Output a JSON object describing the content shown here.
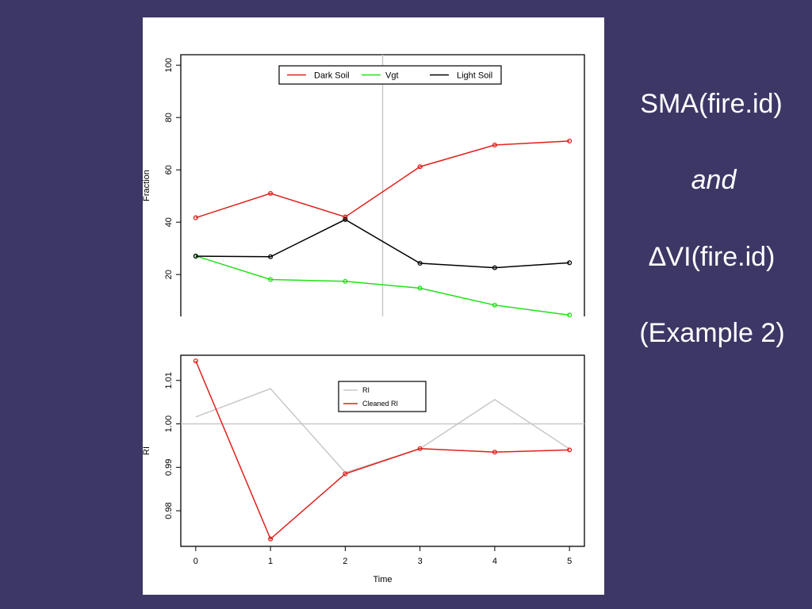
{
  "caption": {
    "line1": "SMA(fire.id)",
    "line2": "and",
    "line3": "∆VI(fire.id)",
    "line4": "(Example 2)"
  },
  "colors": {
    "background": "#3d3766",
    "dark_soil": "#e0201b",
    "vgt": "#22e01a",
    "light_soil": "#000000",
    "ri": "#c8c8c8",
    "cleaned_ri": "#e0201b",
    "reference_line": "#c8c8c8"
  },
  "chart_data": [
    {
      "type": "line",
      "xlabel": "",
      "ylabel": "Fraction",
      "x": [
        0,
        1,
        2,
        3,
        4,
        5
      ],
      "xlim": [
        -0.2,
        5.2
      ],
      "ylim": [
        4,
        104
      ],
      "yticks": [
        "20",
        "40",
        "60",
        "80",
        "100"
      ],
      "ytick_values": [
        20,
        40,
        60,
        80,
        100
      ],
      "vline_x": 2.5,
      "legend_position": "top",
      "series": [
        {
          "name": "Dark Soil",
          "color": "#e0201b",
          "values": [
            41.7,
            51.0,
            42.0,
            61.2,
            69.5,
            71.0
          ]
        },
        {
          "name": "Vgt",
          "color": "#22e01a",
          "values": [
            27.1,
            18.1,
            17.4,
            14.8,
            8.3,
            4.5
          ]
        },
        {
          "name": "Light Soil",
          "color": "#000000",
          "values": [
            27.0,
            26.8,
            41.0,
            24.3,
            22.6,
            24.5
          ]
        }
      ]
    },
    {
      "type": "line",
      "xlabel": "Time",
      "ylabel": "RI",
      "x": [
        0,
        1,
        2,
        3,
        4,
        5
      ],
      "xticks": [
        "0",
        "1",
        "2",
        "3",
        "4",
        "5"
      ],
      "xlim": [
        -0.2,
        5.2
      ],
      "ylim": [
        0.9718,
        1.0158
      ],
      "yticks": [
        "0.98",
        "0.99",
        "1.00",
        "1.01"
      ],
      "ytick_values": [
        0.98,
        0.99,
        1.0,
        1.01
      ],
      "hline_y": 1.0,
      "legend_position": "top-center",
      "series": [
        {
          "name": "RI",
          "color": "#c8c8c8",
          "values": [
            1.0016,
            1.0081,
            0.9888,
            0.9943,
            1.0056,
            0.9942
          ],
          "markers": false
        },
        {
          "name": "Cleaned RI",
          "color": "#e0201b",
          "values": [
            1.0145,
            0.9735,
            0.9885,
            0.9943,
            0.9935,
            0.994
          ],
          "markers": true
        }
      ]
    }
  ]
}
